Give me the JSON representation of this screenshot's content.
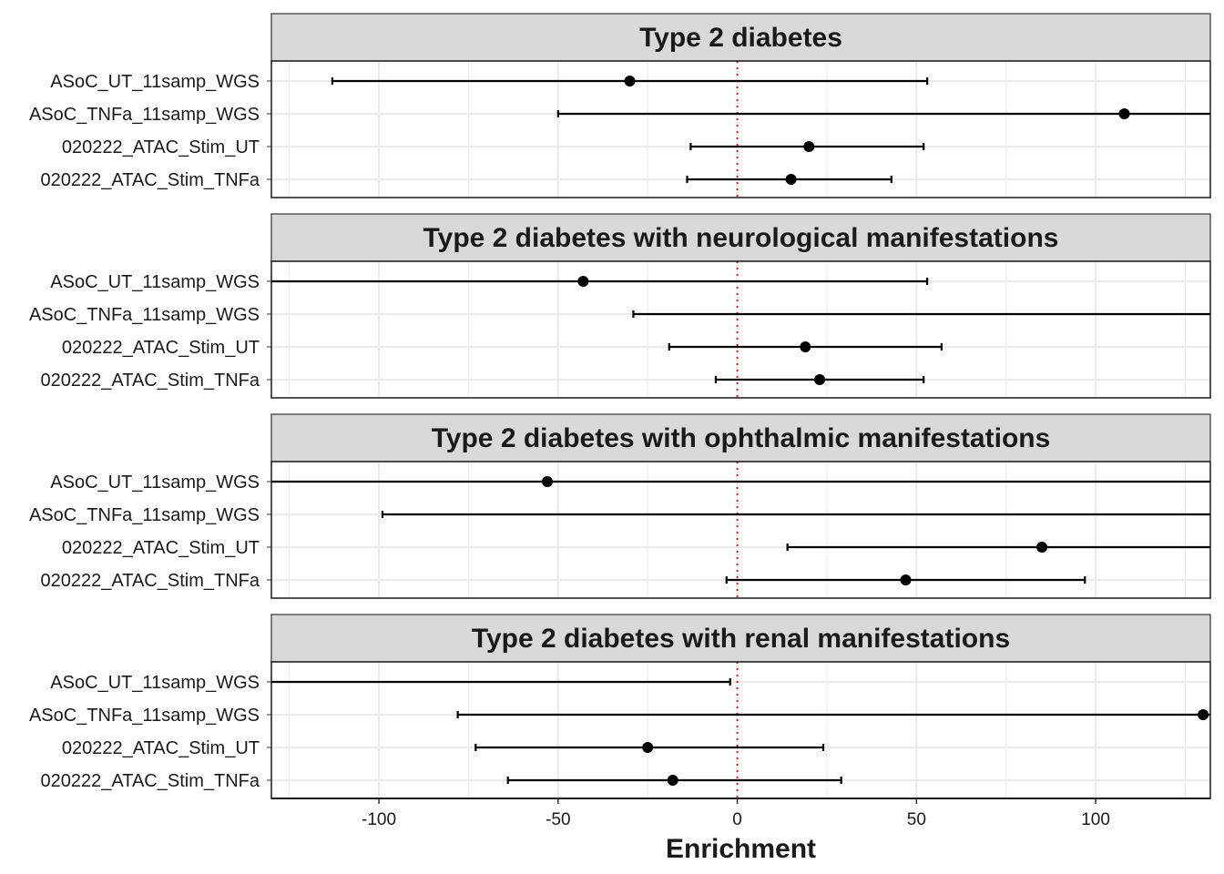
{
  "chart_data": {
    "type": "forest",
    "xlabel": "Enrichment",
    "xlim": [
      -130,
      132
    ],
    "x_ticks": [
      -100,
      -50,
      0,
      50,
      100
    ],
    "x_tick_labels": [
      "-100",
      "-50",
      "0",
      "50",
      "100"
    ],
    "reference_line": {
      "x": 0,
      "color": "#e41a1c",
      "style": "dotted"
    },
    "grid": true,
    "categories": [
      "ASoC_UT_11samp_WGS",
      "ASoC_TNFa_11samp_WGS",
      "020222_ATAC_Stim_UT",
      "020222_ATAC_Stim_TNFa"
    ],
    "panels": [
      {
        "title": "Type 2 diabetes",
        "rows": [
          {
            "label": "ASoC_UT_11samp_WGS",
            "estimate": -30,
            "lower": -113,
            "upper": 53
          },
          {
            "label": "ASoC_TNFa_11samp_WGS",
            "estimate": 108,
            "lower": -50,
            "upper": 140
          },
          {
            "label": "020222_ATAC_Stim_UT",
            "estimate": 20,
            "lower": -13,
            "upper": 52
          },
          {
            "label": "020222_ATAC_Stim_TNFa",
            "estimate": 15,
            "lower": -14,
            "upper": 43
          }
        ]
      },
      {
        "title": "Type 2 diabetes with neurological manifestations",
        "rows": [
          {
            "label": "ASoC_UT_11samp_WGS",
            "estimate": -43,
            "lower": -140,
            "upper": 53
          },
          {
            "label": "ASoC_TNFa_11samp_WGS",
            "estimate": null,
            "lower": -29,
            "upper": 140
          },
          {
            "label": "020222_ATAC_Stim_UT",
            "estimate": 19,
            "lower": -19,
            "upper": 57
          },
          {
            "label": "020222_ATAC_Stim_TNFa",
            "estimate": 23,
            "lower": -6,
            "upper": 52
          }
        ]
      },
      {
        "title": "Type 2 diabetes with ophthalmic manifestations",
        "rows": [
          {
            "label": "ASoC_UT_11samp_WGS",
            "estimate": -53,
            "lower": -140,
            "upper": 140
          },
          {
            "label": "ASoC_TNFa_11samp_WGS",
            "estimate": null,
            "lower": -99,
            "upper": 140
          },
          {
            "label": "020222_ATAC_Stim_UT",
            "estimate": 85,
            "lower": 14,
            "upper": 140
          },
          {
            "label": "020222_ATAC_Stim_TNFa",
            "estimate": 47,
            "lower": -3,
            "upper": 97
          }
        ]
      },
      {
        "title": "Type 2 diabetes with renal manifestations",
        "rows": [
          {
            "label": "ASoC_UT_11samp_WGS",
            "estimate": null,
            "lower": -140,
            "upper": -2
          },
          {
            "label": "ASoC_TNFa_11samp_WGS",
            "estimate": 130,
            "lower": -78,
            "upper": 140
          },
          {
            "label": "020222_ATAC_Stim_UT",
            "estimate": -25,
            "lower": -73,
            "upper": 24
          },
          {
            "label": "020222_ATAC_Stim_TNFa",
            "estimate": -18,
            "lower": -64,
            "upper": 29
          }
        ]
      }
    ]
  }
}
